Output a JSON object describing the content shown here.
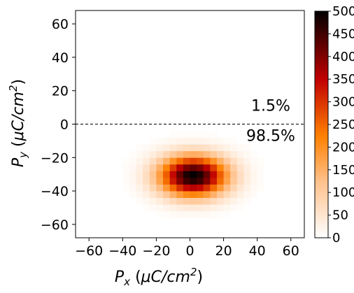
{
  "chart_data": {
    "type": "heatmap",
    "title": "",
    "xlabel": {
      "base": "P",
      "sub": "x",
      "units_prefix": "(",
      "units_mu": "μ",
      "units_mid": "C/cm",
      "units_sup": "2",
      "units_suffix": ")"
    },
    "ylabel": {
      "base": "P",
      "sub": "y",
      "units_prefix": "(",
      "units_mu": "μ",
      "units_mid": "C/cm",
      "units_sup": "2",
      "units_suffix": ")"
    },
    "xlim": [
      -68,
      68
    ],
    "ylim": [
      -68,
      68
    ],
    "xticks": [
      -60,
      -40,
      -20,
      0,
      20,
      40,
      60
    ],
    "yticks": [
      -60,
      -40,
      -20,
      0,
      20,
      40,
      60
    ],
    "xtick_labels": [
      "−60",
      "−40",
      "−20",
      "0",
      "20",
      "40",
      "60"
    ],
    "ytick_labels": [
      "−60",
      "−40",
      "−20",
      "0",
      "20",
      "40",
      "60"
    ],
    "bin_size": 4,
    "distribution": {
      "center_x": 2,
      "center_y": -31,
      "sigma_x": 14,
      "sigma_y": 8.5,
      "peak": 500
    },
    "threshold_line_y": 0,
    "annotations": [
      {
        "text": "1.5%",
        "x": 48,
        "y": 8
      },
      {
        "text": "98.5%",
        "x": 48,
        "y": -10
      }
    ],
    "colorbar": {
      "min": 0,
      "max": 500,
      "ticks": [
        0,
        50,
        100,
        150,
        200,
        250,
        300,
        350,
        400,
        450,
        500
      ],
      "tick_labels": [
        "0",
        "50",
        "100",
        "150",
        "200",
        "250",
        "300",
        "350",
        "400",
        "450",
        "500"
      ],
      "colormap": "gist_heat_r"
    },
    "grid": false,
    "colors": {
      "low": "#ffffff",
      "mid1": "#ffc08a",
      "mid2": "#ff8000",
      "mid3": "#c00000",
      "high": "#000000"
    }
  }
}
